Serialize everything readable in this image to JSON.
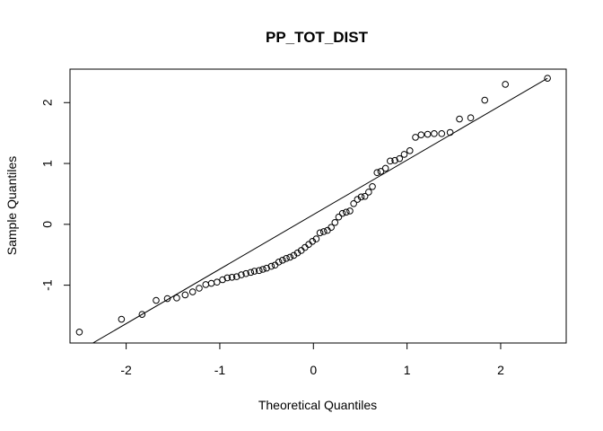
{
  "chart_data": {
    "type": "scatter",
    "subtype": "qq-plot",
    "title": "PP_TOT_DIST",
    "xlabel": "Theoretical Quantiles",
    "ylabel": "Sample Quantiles",
    "xlim": [
      -2.6,
      2.7
    ],
    "ylim": [
      -1.95,
      2.55
    ],
    "xticks": [
      -2,
      -1,
      0,
      1,
      2
    ],
    "yticks": [
      -1,
      0,
      1,
      2
    ],
    "grid": false,
    "reference_line": {
      "x1": -2.5,
      "y1": -2.08,
      "x2": 2.5,
      "y2": 2.4
    },
    "points": [
      {
        "x": -2.5,
        "y": -1.77
      },
      {
        "x": -2.05,
        "y": -1.56
      },
      {
        "x": -1.83,
        "y": -1.48
      },
      {
        "x": -1.68,
        "y": -1.25
      },
      {
        "x": -1.56,
        "y": -1.22
      },
      {
        "x": -1.46,
        "y": -1.21
      },
      {
        "x": -1.37,
        "y": -1.16
      },
      {
        "x": -1.29,
        "y": -1.11
      },
      {
        "x": -1.22,
        "y": -1.05
      },
      {
        "x": -1.15,
        "y": -0.99
      },
      {
        "x": -1.09,
        "y": -0.97
      },
      {
        "x": -1.03,
        "y": -0.95
      },
      {
        "x": -0.97,
        "y": -0.91
      },
      {
        "x": -0.92,
        "y": -0.88
      },
      {
        "x": -0.87,
        "y": -0.87
      },
      {
        "x": -0.82,
        "y": -0.86
      },
      {
        "x": -0.77,
        "y": -0.83
      },
      {
        "x": -0.72,
        "y": -0.81
      },
      {
        "x": -0.67,
        "y": -0.79
      },
      {
        "x": -0.63,
        "y": -0.77
      },
      {
        "x": -0.58,
        "y": -0.76
      },
      {
        "x": -0.54,
        "y": -0.74
      },
      {
        "x": -0.5,
        "y": -0.72
      },
      {
        "x": -0.45,
        "y": -0.69
      },
      {
        "x": -0.41,
        "y": -0.67
      },
      {
        "x": -0.37,
        "y": -0.62
      },
      {
        "x": -0.33,
        "y": -0.59
      },
      {
        "x": -0.29,
        "y": -0.56
      },
      {
        "x": -0.25,
        "y": -0.54
      },
      {
        "x": -0.21,
        "y": -0.51
      },
      {
        "x": -0.17,
        "y": -0.47
      },
      {
        "x": -0.13,
        "y": -0.43
      },
      {
        "x": -0.09,
        "y": -0.38
      },
      {
        "x": -0.05,
        "y": -0.33
      },
      {
        "x": -0.01,
        "y": -0.28
      },
      {
        "x": 0.03,
        "y": -0.24
      },
      {
        "x": 0.07,
        "y": -0.14
      },
      {
        "x": 0.11,
        "y": -0.12
      },
      {
        "x": 0.15,
        "y": -0.1
      },
      {
        "x": 0.19,
        "y": -0.05
      },
      {
        "x": 0.23,
        "y": 0.03
      },
      {
        "x": 0.27,
        "y": 0.12
      },
      {
        "x": 0.31,
        "y": 0.18
      },
      {
        "x": 0.35,
        "y": 0.2
      },
      {
        "x": 0.39,
        "y": 0.22
      },
      {
        "x": 0.43,
        "y": 0.34
      },
      {
        "x": 0.47,
        "y": 0.41
      },
      {
        "x": 0.51,
        "y": 0.45
      },
      {
        "x": 0.55,
        "y": 0.46
      },
      {
        "x": 0.59,
        "y": 0.53
      },
      {
        "x": 0.63,
        "y": 0.62
      },
      {
        "x": 0.68,
        "y": 0.85
      },
      {
        "x": 0.72,
        "y": 0.87
      },
      {
        "x": 0.77,
        "y": 0.92
      },
      {
        "x": 0.82,
        "y": 1.04
      },
      {
        "x": 0.87,
        "y": 1.05
      },
      {
        "x": 0.92,
        "y": 1.08
      },
      {
        "x": 0.97,
        "y": 1.15
      },
      {
        "x": 1.03,
        "y": 1.21
      },
      {
        "x": 1.09,
        "y": 1.43
      },
      {
        "x": 1.15,
        "y": 1.47
      },
      {
        "x": 1.22,
        "y": 1.48
      },
      {
        "x": 1.29,
        "y": 1.49
      },
      {
        "x": 1.37,
        "y": 1.49
      },
      {
        "x": 1.46,
        "y": 1.51
      },
      {
        "x": 1.56,
        "y": 1.73
      },
      {
        "x": 1.68,
        "y": 1.75
      },
      {
        "x": 1.83,
        "y": 2.04
      },
      {
        "x": 2.05,
        "y": 2.3
      },
      {
        "x": 2.5,
        "y": 2.4
      }
    ]
  }
}
